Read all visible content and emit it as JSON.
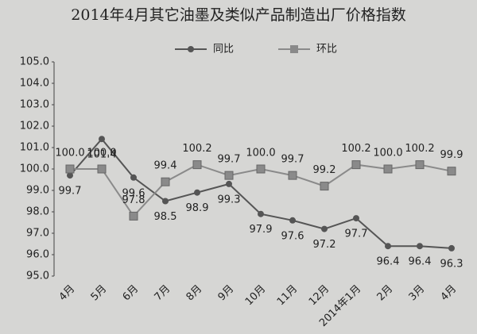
{
  "chart_data": {
    "type": "line",
    "title": "2014年4月其它油墨及类似产品制造出厂价格指数",
    "categories": [
      "4月",
      "5月",
      "6月",
      "7月",
      "8月",
      "9月",
      "10月",
      "11月",
      "12月",
      "2014年1月",
      "2月",
      "3月",
      "4月"
    ],
    "series": [
      {
        "name": "同比",
        "color": "#555555",
        "marker": "circle",
        "values": [
          99.7,
          101.4,
          99.6,
          98.5,
          98.9,
          99.3,
          97.9,
          97.6,
          97.2,
          97.7,
          96.4,
          96.4,
          96.3
        ],
        "value_labels": [
          "99.7",
          "101.4",
          "99.6",
          "98.5",
          "98.9",
          "99.3",
          "97.9",
          "97.6",
          "97.2",
          "97.7",
          "96.4",
          "96.4",
          "96.3"
        ]
      },
      {
        "name": "环比",
        "color": "#8a8a8a",
        "marker": "square",
        "values": [
          100.0,
          100.0,
          97.8,
          99.4,
          100.2,
          99.7,
          100.0,
          99.7,
          99.2,
          100.2,
          100.0,
          100.2,
          99.9
        ],
        "value_labels": [
          "100.0",
          "100.0",
          "97.8",
          "99.4",
          "100.2",
          "99.7",
          "100.0",
          "99.7",
          "99.2",
          "100.2",
          "100.0",
          "100.2",
          "99.9"
        ]
      }
    ],
    "ylim": [
      95,
      105
    ],
    "yticks": [
      {
        "value": 95,
        "label": "95.0"
      },
      {
        "value": 96,
        "label": "96.0"
      },
      {
        "value": 97,
        "label": "97.0"
      },
      {
        "value": 98,
        "label": "98.0"
      },
      {
        "value": 99,
        "label": "99.0"
      },
      {
        "value": 100,
        "label": "100.0"
      },
      {
        "value": 101,
        "label": "101.0"
      },
      {
        "value": 102,
        "label": "102.0"
      },
      {
        "value": 103,
        "label": "103.0"
      },
      {
        "value": 104,
        "label": "104.0"
      },
      {
        "value": 105,
        "label": "105.0"
      }
    ],
    "legend": "top"
  }
}
